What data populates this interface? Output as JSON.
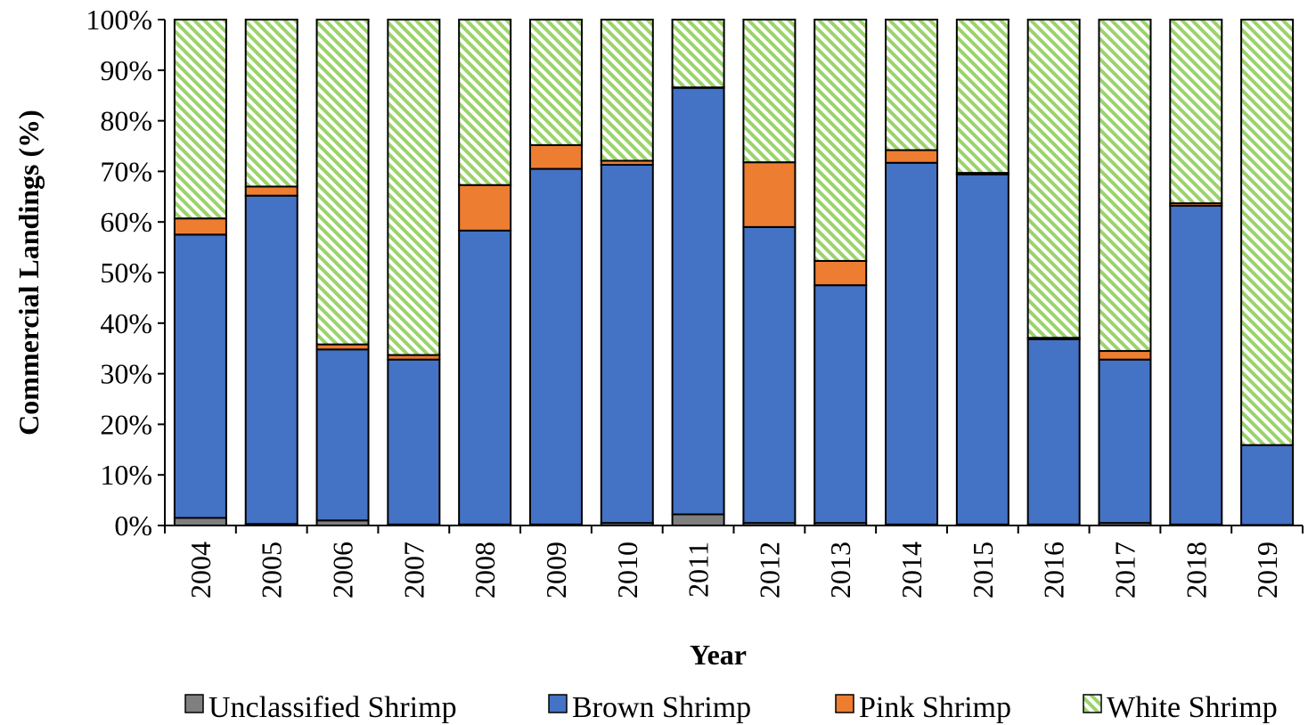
{
  "chart_data": {
    "type": "bar",
    "stacked": true,
    "xlabel": "Year",
    "ylabel": "Commercial Landings (%)",
    "ylim": [
      0,
      100
    ],
    "y_ticks": [
      "0%",
      "10%",
      "20%",
      "30%",
      "40%",
      "50%",
      "60%",
      "70%",
      "80%",
      "90%",
      "100%"
    ],
    "categories": [
      "2004",
      "2005",
      "2006",
      "2007",
      "2008",
      "2009",
      "2010",
      "2011",
      "2012",
      "2013",
      "2014",
      "2015",
      "2016",
      "2017",
      "2018",
      "2019"
    ],
    "series": [
      {
        "name": "Unclassified Shrimp",
        "color": "#7f7f7f",
        "pattern": "solid",
        "values": [
          1.5,
          0.3,
          1.0,
          0.2,
          0.2,
          0.2,
          0.5,
          2.2,
          0.5,
          0.5,
          0.2,
          0.2,
          0.2,
          0.5,
          0.2,
          0.1
        ]
      },
      {
        "name": "Brown Shrimp",
        "color": "#4472c4",
        "pattern": "solid",
        "values": [
          56.0,
          64.9,
          33.8,
          32.6,
          58.1,
          70.3,
          70.8,
          84.3,
          58.5,
          47.0,
          71.5,
          69.2,
          36.6,
          32.3,
          63.0,
          15.8
        ]
      },
      {
        "name": "Pink Shrimp",
        "color": "#ed7d31",
        "pattern": "solid",
        "values": [
          3.2,
          1.8,
          1.0,
          0.9,
          9.0,
          4.7,
          0.8,
          0.1,
          12.8,
          4.8,
          2.5,
          0.3,
          0.3,
          1.7,
          0.5,
          0.0
        ]
      },
      {
        "name": "White Shrimp",
        "color": "#9bd36a",
        "pattern": "diagonal-stripes",
        "values": [
          39.3,
          33.0,
          64.2,
          66.3,
          32.7,
          24.8,
          27.9,
          13.4,
          28.2,
          47.7,
          25.8,
          30.3,
          62.9,
          65.5,
          36.3,
          84.1
        ]
      }
    ],
    "legend_position": "bottom",
    "grid": false
  }
}
